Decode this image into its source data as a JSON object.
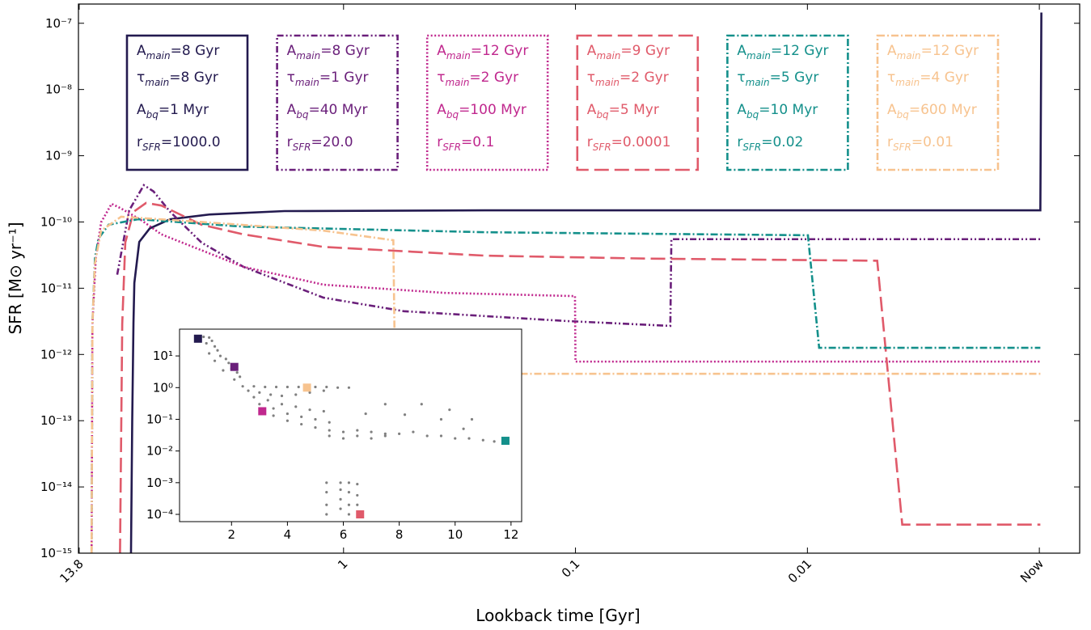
{
  "chart_data": [
    {
      "type": "line",
      "xlabel": "Lookback time [Gyr]",
      "ylabel": "SFR [M⊙ yr⁻¹]",
      "xlog": true,
      "ylog": true,
      "xlim": [
        13.9,
        0.00067
      ],
      "ylim": [
        1e-15,
        1.95e-07
      ],
      "xticks": [
        13.8,
        1,
        0.1,
        0.01,
        {
          "value": 0.001,
          "label": "Now"
        }
      ],
      "yticks": [
        {
          "value": 1e-15,
          "label": "10⁻¹⁵"
        },
        {
          "value": 1e-14,
          "label": "10⁻¹⁴"
        },
        {
          "value": 1e-13,
          "label": "10⁻¹³"
        },
        {
          "value": 1e-12,
          "label": "10⁻¹²"
        },
        {
          "value": 1e-11,
          "label": "10⁻¹¹"
        },
        {
          "value": 1e-10,
          "label": "10⁻¹⁰"
        },
        {
          "value": 1e-09,
          "label": "10⁻⁹"
        },
        {
          "value": 1e-08,
          "label": "10⁻⁸"
        },
        {
          "value": 1e-07,
          "label": "10⁻⁷"
        }
      ],
      "series": [
        {
          "color": "#231a4f",
          "linestyle": "solid",
          "legend_lines": [
            {
              "symbol": "A",
              "sub": "main",
              "text": "=8 Gyr"
            },
            {
              "symbol": "τ",
              "sub": "main",
              "text": "=8 Gyr"
            },
            {
              "symbol": "A",
              "sub": "bq",
              "text": "=1 Myr"
            },
            {
              "symbol": "r",
              "sub": "SFR",
              "text": "=1000.0"
            }
          ],
          "x": [
            8.25,
            8.15,
            8.05,
            7.98,
            7.6,
            6.85,
            5.6,
            3.76,
            1.8,
            0.245,
            0.00099,
            0.00098
          ],
          "values": [
            1e-15,
            1e-13,
            3e-12,
            1.2e-11,
            5e-11,
            8e-11,
            1.1e-10,
            1.3e-10,
            1.46e-10,
            1.5e-10,
            1.5e-10,
            1.45e-07
          ]
        },
        {
          "color": "#6a1f7a",
          "linestyle": "dashdotdot",
          "legend_lines": [
            {
              "symbol": "A",
              "sub": "main",
              "text": "=8 Gyr"
            },
            {
              "symbol": "τ",
              "sub": "main",
              "text": "=1 Gyr"
            },
            {
              "symbol": "A",
              "sub": "bq",
              "text": "=40 Myr"
            },
            {
              "symbol": "r",
              "sub": "SFR",
              "text": "=20.0"
            }
          ],
          "x": [
            9.46,
            8.4,
            7.26,
            6.6,
            5.6,
            4.1,
            2.7,
            1.22,
            0.55,
            0.11,
            0.039,
            0.0386,
            0.00099
          ],
          "values": [
            1.6e-11,
            1.5e-10,
            3.6e-10,
            2.9e-10,
            1.43e-10,
            4.9e-11,
            2.1e-11,
            7.2e-12,
            4.5e-12,
            3.2e-12,
            2.7e-12,
            5.5e-11,
            5.5e-11
          ]
        },
        {
          "color": "#c0288e",
          "linestyle": "dotted",
          "legend_lines": [
            {
              "symbol": "A",
              "sub": "main",
              "text": "=12 Gyr"
            },
            {
              "symbol": "τ",
              "sub": "main",
              "text": "=2 Gyr"
            },
            {
              "symbol": "A",
              "sub": "bq",
              "text": "=100 Myr"
            },
            {
              "symbol": "r",
              "sub": "SFR",
              "text": "=0.1"
            }
          ],
          "x": [
            12.2,
            12.1,
            11.7,
            11.1,
            10.0,
            9.1,
            7.4,
            6.1,
            2.7,
            1.22,
            0.366,
            0.1005,
            0.1,
            0.00099
          ],
          "values": [
            1e-15,
            2.9e-12,
            2.8e-11,
            9.9e-11,
            1.88e-10,
            1.6e-10,
            1.05e-10,
            6.5e-11,
            2.1e-11,
            1.13e-11,
            8.5e-12,
            7.6e-12,
            7.8e-13,
            7.8e-13
          ]
        },
        {
          "color": "#e05a6a",
          "linestyle": "dashed",
          "legend_lines": [
            {
              "symbol": "A",
              "sub": "main",
              "text": "=9 Gyr"
            },
            {
              "symbol": "τ",
              "sub": "main",
              "text": "=2 Gyr"
            },
            {
              "symbol": "A",
              "sub": "bq",
              "text": "=5 Myr"
            },
            {
              "symbol": "r",
              "sub": "SFR",
              "text": "=0.0001"
            }
          ],
          "x": [
            9.2,
            9.0,
            8.73,
            8.05,
            7.1,
            6.1,
            4.1,
            2.7,
            1.22,
            0.245,
            0.049,
            0.005,
            0.0039,
            0.00099
          ],
          "values": [
            1e-15,
            2.9e-12,
            4.9e-11,
            1.42e-10,
            1.94e-10,
            1.77e-10,
            9.1e-11,
            6.5e-11,
            4.2e-11,
            3.1e-11,
            2.8e-11,
            2.6e-11,
            2.7e-15,
            2.7e-15
          ]
        },
        {
          "color": "#14908b",
          "linestyle": "dashdot",
          "legend_lines": [
            {
              "symbol": "A",
              "sub": "main",
              "text": "=12 Gyr"
            },
            {
              "symbol": "τ",
              "sub": "main",
              "text": "=5 Gyr"
            },
            {
              "symbol": "A",
              "sub": "bq",
              "text": "=10 Myr"
            },
            {
              "symbol": "r",
              "sub": "SFR",
              "text": "=0.02"
            }
          ],
          "x": [
            12.2,
            12.1,
            11.8,
            11.4,
            10.3,
            7.7,
            2.7,
            0.245,
            0.00995,
            0.0089,
            0.00099
          ],
          "values": [
            1e-15,
            2.9e-12,
            2.8e-11,
            5.6e-11,
            9.1e-11,
            1.1e-10,
            8.5e-11,
            7e-11,
            6.3e-11,
            1.26e-12,
            1.26e-12
          ]
        },
        {
          "color": "#f7c38f",
          "linestyle": "dashdot",
          "legend_lines": [
            {
              "symbol": "A",
              "sub": "main",
              "text": "=12 Gyr"
            },
            {
              "symbol": "τ",
              "sub": "main",
              "text": "=4 Gyr"
            },
            {
              "symbol": "A",
              "sub": "bq",
              "text": "=600 Myr"
            },
            {
              "symbol": "r",
              "sub": "SFR",
              "text": "=0.01"
            }
          ],
          "x": [
            12.2,
            12.1,
            11.8,
            11.1,
            9.1,
            4.1,
            1.22,
            0.61,
            0.6,
            0.00099
          ],
          "values": [
            1e-15,
            2.9e-12,
            2.4e-11,
            7.4e-11,
            1.2e-10,
            1e-10,
            7.4e-11,
            5.3e-11,
            5.1e-13,
            5.1e-13
          ]
        }
      ]
    },
    {
      "type": "scatter",
      "ylog": true,
      "xlim": [
        0.14,
        12.38
      ],
      "ylim": [
        5.9e-05,
        70
      ],
      "xticks": [
        2,
        4,
        6,
        8,
        10,
        12
      ],
      "yticks": [
        {
          "value": 10,
          "label": "10¹"
        },
        {
          "value": 1,
          "label": "10⁰"
        },
        {
          "value": 0.1,
          "label": "10⁻¹"
        },
        {
          "value": 0.01,
          "label": "10⁻²"
        },
        {
          "value": 0.001,
          "label": "10⁻³"
        },
        {
          "value": 0.0001,
          "label": "10⁻⁴"
        }
      ],
      "series": [
        {
          "color": "#808080",
          "marker": "dot",
          "x": [
            1.0,
            1.2,
            1.3,
            1.1,
            1.4,
            1.5,
            1.2,
            1.6,
            1.8,
            1.4,
            1.9,
            2.0,
            1.7,
            2.2,
            2.3,
            2.1,
            2.4,
            2.8,
            3.2,
            3.6,
            4.0,
            4.4,
            5.0,
            5.4,
            5.8,
            6.2,
            2.6,
            3.0,
            3.4,
            3.8,
            4.3,
            4.8,
            5.3,
            2.8,
            3.3,
            3.8,
            4.3,
            4.8,
            5.3,
            3.0,
            3.5,
            4.0,
            4.5,
            5.0,
            5.5,
            3.5,
            4.0,
            4.5,
            5.0,
            5.5,
            6.0,
            6.5,
            7.0,
            7.5,
            8.0,
            8.5,
            9.0,
            9.5,
            10.0,
            10.5,
            11.0,
            11.4,
            6.0,
            6.5,
            7.0,
            7.5,
            5.5,
            6.8,
            7.5,
            8.2,
            8.8,
            9.5,
            10.3,
            9.8,
            10.6,
            5.4,
            5.4,
            5.4,
            5.4,
            5.9,
            5.9,
            5.9,
            5.9,
            6.2,
            6.2,
            6.2,
            6.2,
            6.5,
            6.5,
            6.5
          ],
          "values": [
            40,
            38,
            30,
            25,
            20,
            15,
            12,
            10,
            8,
            7,
            6,
            4,
            3.5,
            3,
            2.2,
            1.8,
            1.1,
            1.1,
            1.05,
            1.05,
            1.05,
            1.05,
            1.05,
            1.05,
            1.0,
            1.0,
            0.8,
            0.7,
            0.6,
            0.55,
            0.6,
            0.7,
            0.8,
            0.5,
            0.4,
            0.3,
            0.25,
            0.2,
            0.18,
            0.3,
            0.22,
            0.15,
            0.12,
            0.1,
            0.08,
            0.13,
            0.09,
            0.07,
            0.055,
            0.045,
            0.04,
            0.045,
            0.04,
            0.035,
            0.035,
            0.04,
            0.03,
            0.03,
            0.025,
            0.025,
            0.022,
            0.02,
            0.025,
            0.03,
            0.025,
            0.03,
            0.03,
            0.15,
            0.3,
            0.14,
            0.3,
            0.1,
            0.05,
            0.2,
            0.1,
            0.001,
            0.0005,
            0.0002,
            0.0001,
            0.001,
            0.0006,
            0.0003,
            0.00015,
            0.001,
            0.0005,
            0.0002,
            0.0001,
            0.0009,
            0.0004,
            0.0002
          ]
        },
        {
          "color": "#231a4f",
          "marker": "square",
          "x": [
            0.8
          ],
          "values": [
            35
          ]
        },
        {
          "color": "#6a1f7a",
          "marker": "square",
          "x": [
            2.1
          ],
          "values": [
            4.5
          ]
        },
        {
          "color": "#f7c38f",
          "marker": "square",
          "x": [
            4.7
          ],
          "values": [
            1.0
          ]
        },
        {
          "color": "#c0288e",
          "marker": "square",
          "x": [
            3.1
          ],
          "values": [
            0.18
          ]
        },
        {
          "color": "#14908b",
          "marker": "square",
          "x": [
            11.8
          ],
          "values": [
            0.021
          ]
        },
        {
          "color": "#e05a6a",
          "marker": "square",
          "x": [
            6.6
          ],
          "values": [
            0.0001
          ]
        }
      ]
    }
  ]
}
